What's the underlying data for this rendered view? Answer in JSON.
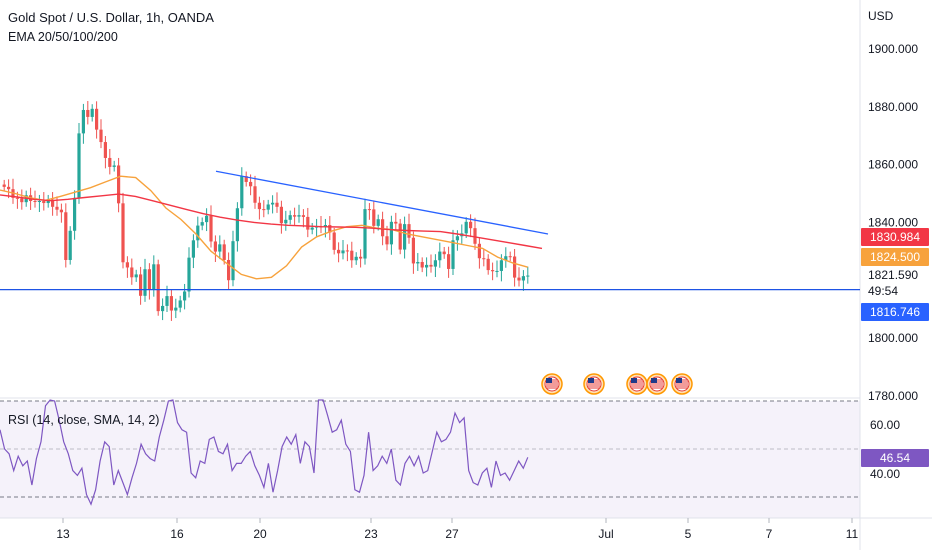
{
  "legend": {
    "title": "Gold Spot / U.S. Dollar, 1h, OANDA",
    "indicators": "EMA 20/50/100/200"
  },
  "rsi_legend": "RSI (14, close, SMA, 14, 2)",
  "price_axis": {
    "currency": "USD",
    "ticks": [
      "1900.000",
      "1880.000",
      "1860.000",
      "1840.000",
      "1800.000",
      "1780.000"
    ]
  },
  "rsi_axis": {
    "ticks": [
      "60.00",
      "40.00"
    ]
  },
  "badges": {
    "ema_red": "1830.984",
    "ema_orange": "1824.500",
    "last_price": "1821.590",
    "countdown": "49:54",
    "hline": "1816.746",
    "rsi_value": "46.54"
  },
  "colors": {
    "up": "#26a69a",
    "down": "#ef5350",
    "ema_orange": "#f7a23c",
    "ema_red": "#f23645",
    "trendline": "#2962ff",
    "hline": "#1e53e5",
    "rsi": "#7e57c2",
    "hline_badge": "#2962ff"
  },
  "icons": [
    "us-flag-icon",
    "us-flag-icon",
    "us-flag-icon",
    "us-flag-icon",
    "us-flag-icon"
  ],
  "chart_data": [
    {
      "type": "candlestick",
      "title": "Gold Spot / U.S. Dollar, 1h, OANDA",
      "ylabel": "USD",
      "ylim": [
        1780,
        1910
      ],
      "x_tick_labels": [
        "13",
        "16",
        "20",
        "23",
        "27",
        "Jul",
        "5",
        "7",
        "11"
      ],
      "closes": [
        1852.3,
        1851.5,
        1848.5,
        1848.3,
        1847.0,
        1849.4,
        1847.4,
        1847.2,
        1847.4,
        1846.7,
        1847.9,
        1845.4,
        1844.4,
        1843.5,
        1827.0,
        1837.1,
        1848.5,
        1870.8,
        1878.9,
        1876.5,
        1879.3,
        1872.1,
        1867.8,
        1862.3,
        1859.2,
        1859.7,
        1846.6,
        1826.2,
        1824.4,
        1821.0,
        1822.0,
        1814.6,
        1823.8,
        1816.9,
        1825.5,
        1809.3,
        1811.1,
        1814.5,
        1809.5,
        1810.5,
        1813.0,
        1816.1,
        1827.8,
        1833.8,
        1838.9,
        1840.1,
        1842.3,
        1833.4,
        1829.9,
        1832.4,
        1827.0,
        1820.0,
        1833.5,
        1844.9,
        1856.0,
        1854.0,
        1852.5,
        1846.8,
        1844.6,
        1844.4,
        1846.2,
        1846.8,
        1845.4,
        1839.7,
        1840.9,
        1842.5,
        1842.0,
        1842.5,
        1841.9,
        1837.5,
        1838.2,
        1838.6,
        1838.4,
        1839.1,
        1836.5,
        1830.5,
        1829.3,
        1830.3,
        1830.2,
        1826.9,
        1828.1,
        1827.5,
        1844.6,
        1844.5,
        1838.8,
        1841.1,
        1835.2,
        1832.4,
        1840.2,
        1839.6,
        1830.6,
        1839.4,
        1834.7,
        1825.8,
        1826.3,
        1824.4,
        1825.3,
        1824.7,
        1826.9,
        1829.9,
        1829.0,
        1823.9,
        1833.8,
        1835.2,
        1836.2,
        1840.2,
        1838.0,
        1832.6,
        1827.6,
        1827.4,
        1823.5,
        1823.1,
        1823.2,
        1826.9,
        1828.3,
        1828.2,
        1820.9,
        1819.9,
        1821.4,
        1821.6
      ],
      "ema": [
        {
          "label": "1824.500",
          "color": "#f7a23c",
          "values": [
            1851.2,
            1850.0,
            1848.5,
            1847.6,
            1849.0,
            1850.5,
            1852.0,
            1854.0,
            1856.0,
            1855.5,
            1851.0,
            1845.0,
            1841.0,
            1836.0,
            1830.0,
            1826.0,
            1822.0,
            1820.5,
            1821.0,
            1825.0,
            1831.5,
            1835.0,
            1837.0,
            1838.5,
            1839.0,
            1838.0,
            1837.5,
            1836.0,
            1835.0,
            1834.0,
            1833.0,
            1832.0,
            1831.0,
            1828.0,
            1826.0,
            1824.5
          ]
        },
        {
          "label": "1830.984",
          "color": "#f23645",
          "values": [
            1849.5,
            1848.8,
            1848.0,
            1847.5,
            1848.0,
            1848.6,
            1849.2,
            1849.8,
            1849.0,
            1847.5,
            1846.0,
            1844.5,
            1843.0,
            1841.8,
            1840.8,
            1840.0,
            1839.4,
            1839.0,
            1838.8,
            1838.5,
            1838.4,
            1838.3,
            1838.0,
            1837.5,
            1837.2,
            1837.0,
            1836.8,
            1836.0,
            1835.0,
            1834.0,
            1833.0,
            1832.0,
            1831.0
          ]
        }
      ],
      "trendline": [
        1857.7,
        1836.0
      ],
      "horizontal_line": 1816.746,
      "last_price": 1821.59
    },
    {
      "type": "line",
      "name": "RSI (14, close, SMA, 14, 2)",
      "levels": [
        70,
        30
      ],
      "ylim": [
        25,
        75
      ],
      "values": [
        58,
        50,
        48,
        41,
        47,
        43,
        45,
        35,
        46,
        53,
        68,
        74,
        70,
        62,
        53,
        48,
        41,
        39,
        42,
        31,
        27,
        33,
        45,
        53,
        51,
        35,
        41,
        36,
        31,
        38,
        44,
        52,
        48,
        46,
        45,
        55,
        62,
        70,
        72,
        61,
        58,
        57,
        40,
        38,
        45,
        44,
        54,
        55,
        49,
        48,
        52,
        41,
        44,
        44,
        47,
        49,
        43,
        39,
        34,
        44,
        32,
        41,
        51,
        55,
        52,
        56,
        44,
        53,
        51,
        40,
        71,
        74,
        64,
        57,
        58,
        62,
        52,
        49,
        33,
        32,
        39,
        57,
        41,
        43,
        47,
        44,
        50,
        37,
        35,
        44,
        47,
        43,
        47,
        40,
        41,
        49,
        57,
        53,
        54,
        57,
        65,
        61,
        63,
        41,
        36,
        35,
        40,
        42,
        34,
        45,
        39,
        40,
        37,
        41,
        45,
        42,
        46.54
      ]
    }
  ]
}
